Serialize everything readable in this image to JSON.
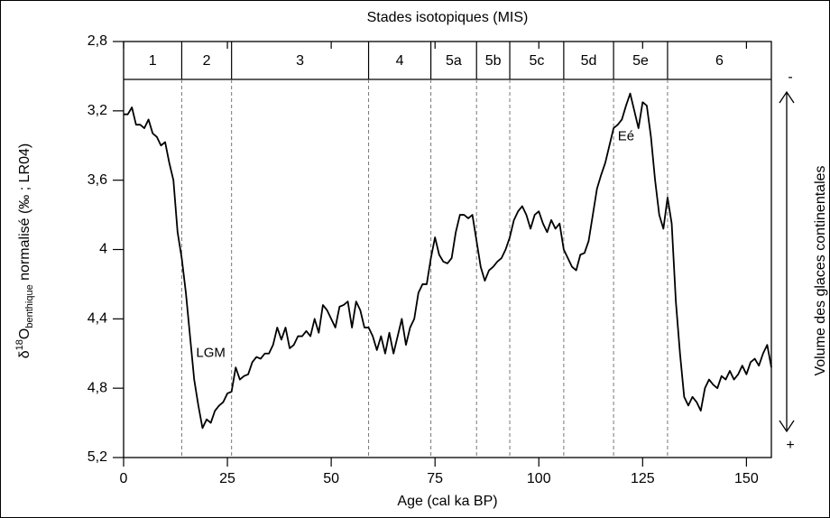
{
  "chart_data": {
    "type": "line",
    "top_label": "Stades isotopiques (MIS)",
    "x_label": "Age (cal ka BP)",
    "y_label_parts": [
      "δ",
      "18",
      "O",
      "benthique",
      " normalisé (‰ ; LR04)"
    ],
    "right_label": "Volume des glaces continentales",
    "right_top": "-",
    "right_bottom": "+",
    "annotations": [
      {
        "text": "LGM",
        "x": 21,
        "y": 4.6
      },
      {
        "text": "Eé",
        "x": 121,
        "y": 3.35
      }
    ],
    "stages": [
      "1",
      "2",
      "3",
      "4",
      "5a",
      "5b",
      "5c",
      "5d",
      "5e",
      "6"
    ],
    "stage_boundaries": [
      14,
      26,
      59,
      74,
      85,
      93,
      106,
      118,
      131
    ],
    "xlim": [
      0,
      156
    ],
    "xticks": [
      0,
      25,
      50,
      75,
      100,
      125,
      150
    ],
    "ylim": [
      2.8,
      5.2
    ],
    "y_inverted": true,
    "yticks": [
      {
        "value": 2.8,
        "label": "2,8"
      },
      {
        "value": 3.2,
        "label": "3,2"
      },
      {
        "value": 3.6,
        "label": "3,6"
      },
      4,
      {
        "value": 4.4,
        "label": "4,4"
      },
      {
        "value": 4.8,
        "label": "4,8"
      },
      {
        "value": 5.2,
        "label": "5,2"
      }
    ],
    "color": "#000000",
    "x": [
      0,
      1,
      2,
      3,
      4,
      5,
      6,
      7,
      8,
      9,
      10,
      11,
      12,
      13,
      14,
      15,
      16,
      17,
      18,
      19,
      20,
      21,
      22,
      23,
      24,
      25,
      26,
      27,
      28,
      29,
      30,
      31,
      32,
      33,
      34,
      35,
      36,
      37,
      38,
      39,
      40,
      41,
      42,
      43,
      44,
      45,
      46,
      47,
      48,
      49,
      50,
      51,
      52,
      53,
      54,
      55,
      56,
      57,
      58,
      59,
      60,
      61,
      62,
      63,
      64,
      65,
      66,
      67,
      68,
      69,
      70,
      71,
      72,
      73,
      74,
      75,
      76,
      77,
      78,
      79,
      80,
      81,
      82,
      83,
      84,
      85,
      86,
      87,
      88,
      89,
      90,
      91,
      92,
      93,
      94,
      95,
      96,
      97,
      98,
      99,
      100,
      101,
      102,
      103,
      104,
      105,
      106,
      107,
      108,
      109,
      110,
      111,
      112,
      113,
      114,
      115,
      116,
      117,
      118,
      119,
      120,
      121,
      122,
      123,
      124,
      125,
      126,
      127,
      128,
      129,
      130,
      131,
      132,
      133,
      134,
      135,
      136,
      137,
      138,
      139,
      140,
      141,
      142,
      143,
      144,
      145,
      146,
      147,
      148,
      149,
      150,
      151,
      152,
      153,
      154,
      155,
      156
    ],
    "values": [
      3.22,
      3.22,
      3.18,
      3.28,
      3.28,
      3.3,
      3.25,
      3.33,
      3.35,
      3.4,
      3.38,
      3.5,
      3.6,
      3.9,
      4.05,
      4.25,
      4.5,
      4.75,
      4.9,
      5.03,
      4.98,
      5.0,
      4.93,
      4.9,
      4.88,
      4.83,
      4.82,
      4.68,
      4.75,
      4.73,
      4.72,
      4.65,
      4.62,
      4.63,
      4.6,
      4.6,
      4.55,
      4.45,
      4.52,
      4.45,
      4.57,
      4.55,
      4.5,
      4.5,
      4.47,
      4.5,
      4.4,
      4.48,
      4.32,
      4.35,
      4.4,
      4.45,
      4.33,
      4.32,
      4.3,
      4.45,
      4.3,
      4.35,
      4.45,
      4.45,
      4.5,
      4.58,
      4.5,
      4.6,
      4.48,
      4.6,
      4.5,
      4.4,
      4.55,
      4.45,
      4.4,
      4.25,
      4.2,
      4.2,
      4.05,
      3.93,
      4.03,
      4.07,
      4.08,
      4.05,
      3.9,
      3.8,
      3.8,
      3.82,
      3.8,
      3.95,
      4.1,
      4.18,
      4.12,
      4.1,
      4.07,
      4.05,
      4.0,
      3.93,
      3.83,
      3.78,
      3.75,
      3.8,
      3.88,
      3.8,
      3.78,
      3.85,
      3.9,
      3.83,
      3.88,
      3.85,
      4.0,
      4.05,
      4.1,
      4.12,
      4.03,
      4.02,
      3.95,
      3.8,
      3.65,
      3.57,
      3.5,
      3.4,
      3.3,
      3.28,
      3.25,
      3.17,
      3.1,
      3.2,
      3.3,
      3.15,
      3.17,
      3.35,
      3.6,
      3.8,
      3.88,
      3.7,
      3.85,
      4.3,
      4.6,
      4.85,
      4.9,
      4.85,
      4.88,
      4.93,
      4.8,
      4.75,
      4.78,
      4.8,
      4.73,
      4.75,
      4.7,
      4.75,
      4.72,
      4.67,
      4.72,
      4.65,
      4.63,
      4.67,
      4.6,
      4.55,
      4.68
    ]
  }
}
